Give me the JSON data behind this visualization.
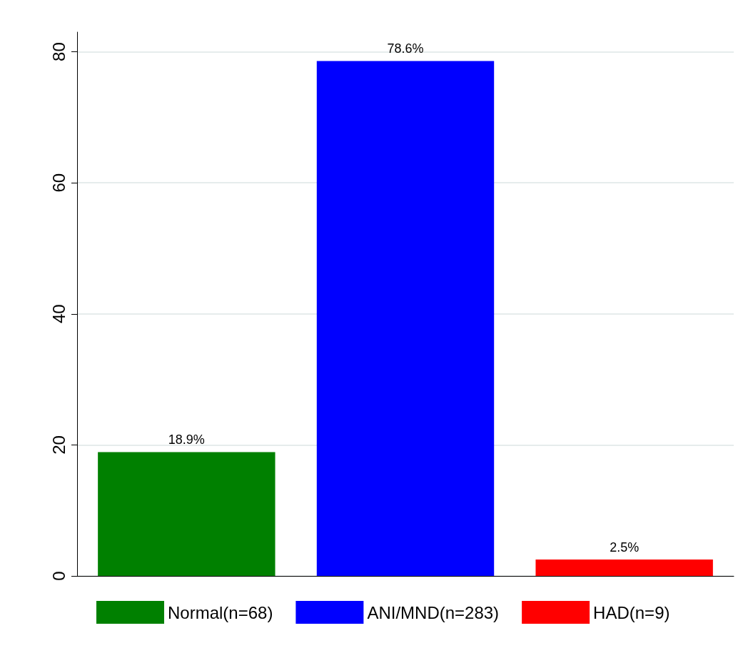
{
  "chart_data": {
    "type": "bar",
    "categories": [
      null,
      null,
      null
    ],
    "series": [
      {
        "name": "Normal(n=68)",
        "color": "#008000",
        "values": [
          18.9,
          null,
          null
        ],
        "value_labels": [
          "18.9%",
          null,
          null
        ]
      },
      {
        "name": "ANI/MND(n=283)",
        "color": "#0000ff",
        "values": [
          null,
          78.6,
          null
        ],
        "value_labels": [
          null,
          "78.6%",
          null
        ]
      },
      {
        "name": "HAD(n=9)",
        "color": "#ff0000",
        "values": [
          null,
          null,
          2.5
        ],
        "value_labels": [
          null,
          null,
          "2.5%"
        ]
      }
    ],
    "ylim": [
      0,
      83
    ],
    "yticks": [
      0,
      20,
      40,
      60,
      80
    ],
    "grid": "y",
    "legend": "bottom"
  }
}
